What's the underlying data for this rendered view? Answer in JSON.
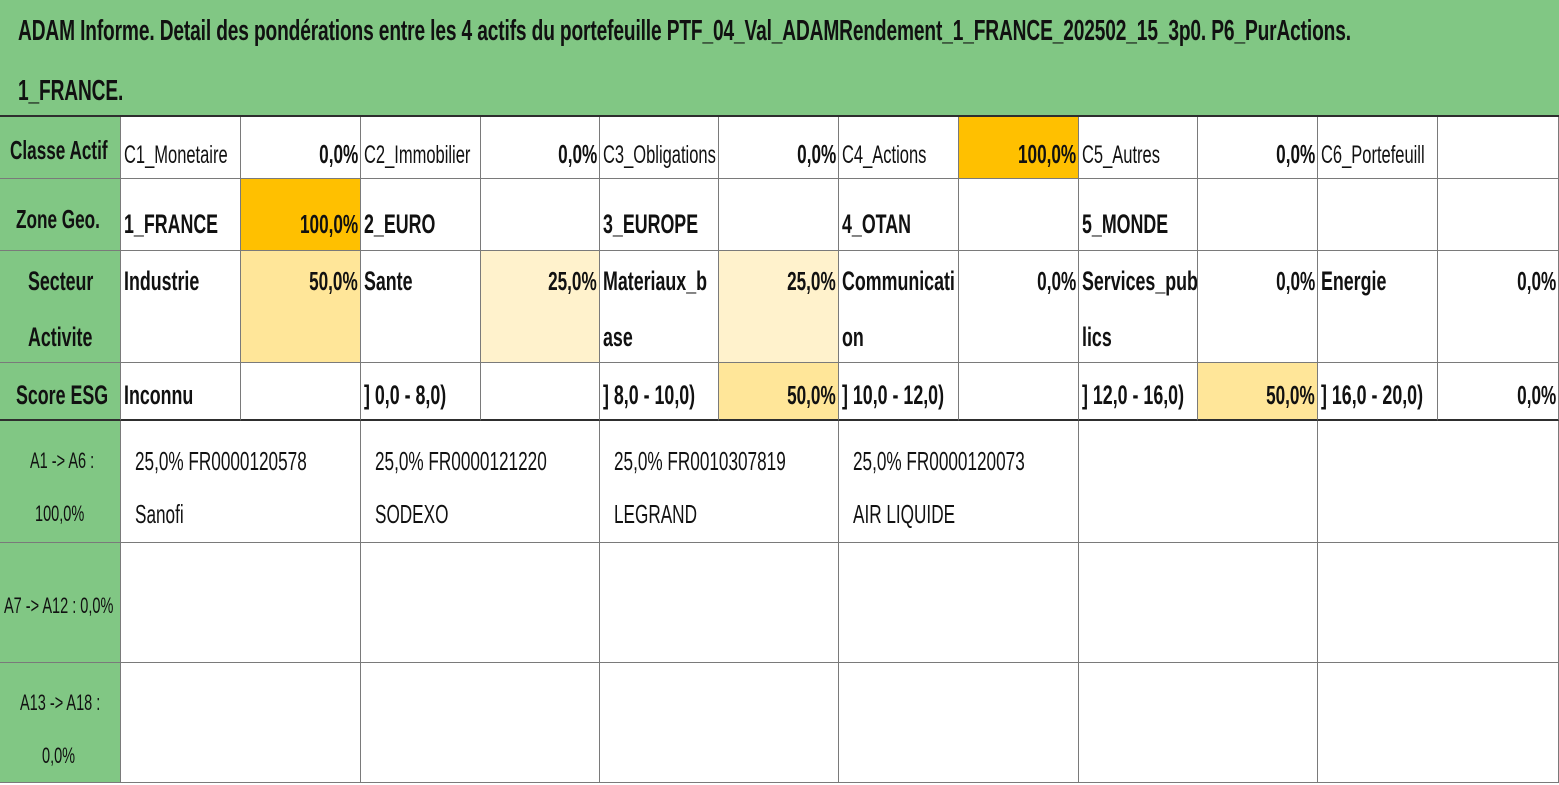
{
  "title": {
    "line1": "ADAM Informe. Detail des pondérations entre les 4 actifs du portefeuille PTF_04_Val_ADAMRendement_1_FRANCE_202502_15_3p0. P6_PurActions.",
    "line2": "1_FRANCE."
  },
  "classe_actif": {
    "label": "Classe Actif",
    "items": [
      {
        "name": "C1_Monetaire",
        "value": "0,0%"
      },
      {
        "name": "C2_Immobilier",
        "value": "0,0%"
      },
      {
        "name": "C3_Obligations",
        "value": "0,0%"
      },
      {
        "name": "C4_Actions",
        "value": "100,0%"
      },
      {
        "name": "C5_Autres",
        "value": "0,0%"
      },
      {
        "name": "C6_Portefeuill",
        "value": ""
      }
    ]
  },
  "zone_geo": {
    "label": "Zone Geo.",
    "items": [
      {
        "name": "1_FRANCE",
        "value": "100,0%"
      },
      {
        "name": "2_EURO",
        "value": ""
      },
      {
        "name": "3_EUROPE",
        "value": ""
      },
      {
        "name": "4_OTAN",
        "value": ""
      },
      {
        "name": "5_MONDE",
        "value": ""
      },
      {
        "name": "",
        "value": ""
      }
    ]
  },
  "secteur_activite": {
    "label_line1": "Secteur",
    "label_line2": "Activite",
    "items": [
      {
        "line1": "Industrie",
        "line2": "",
        "value": "50,0%"
      },
      {
        "line1": "Sante",
        "line2": "",
        "value": "25,0%"
      },
      {
        "line1": "Materiaux_b",
        "line2": "ase",
        "value": "25,0%"
      },
      {
        "line1": "Communicati",
        "line2": "on",
        "value": "0,0%"
      },
      {
        "line1": "Services_pub",
        "line2": "lics",
        "value": "0,0%"
      },
      {
        "line1": "Energie",
        "line2": "",
        "value": "0,0%"
      }
    ]
  },
  "score_esg": {
    "label": "Score ESG",
    "items": [
      {
        "name": "Inconnu",
        "value": ""
      },
      {
        "name": "] 0,0 - 8,0)",
        "value": ""
      },
      {
        "name": "] 8,0 - 10,0)",
        "value": "50,0%"
      },
      {
        "name": "] 10,0 - 12,0)",
        "value": ""
      },
      {
        "name": "] 12,0 - 16,0)",
        "value": "50,0%"
      },
      {
        "name": "] 16,0 - 20,0)",
        "value": "0,0%"
      }
    ]
  },
  "assets": {
    "rows": [
      {
        "label_line1": "A1 -> A6 :",
        "label_line2": "100,0%"
      },
      {
        "label_line1": "A7 -> A12 : 0,0%",
        "label_line2": ""
      },
      {
        "label_line1": "A13 -> A18 :",
        "label_line2": "0,0%"
      }
    ],
    "items": [
      {
        "line1": "25,0% FR0000120578",
        "line2": "Sanofi"
      },
      {
        "line1": "25,0% FR0000121220",
        "line2": "SODEXO"
      },
      {
        "line1": "25,0% FR0010307819",
        "line2": "LEGRAND"
      },
      {
        "line1": "25,0% FR0000120073",
        "line2": "AIR LIQUIDE"
      }
    ]
  },
  "colors": {
    "header_green": "#81c784",
    "highlight_orange": "#ffc000",
    "highlight_light": "#ffe699",
    "highlight_pale": "#fff2cc"
  }
}
